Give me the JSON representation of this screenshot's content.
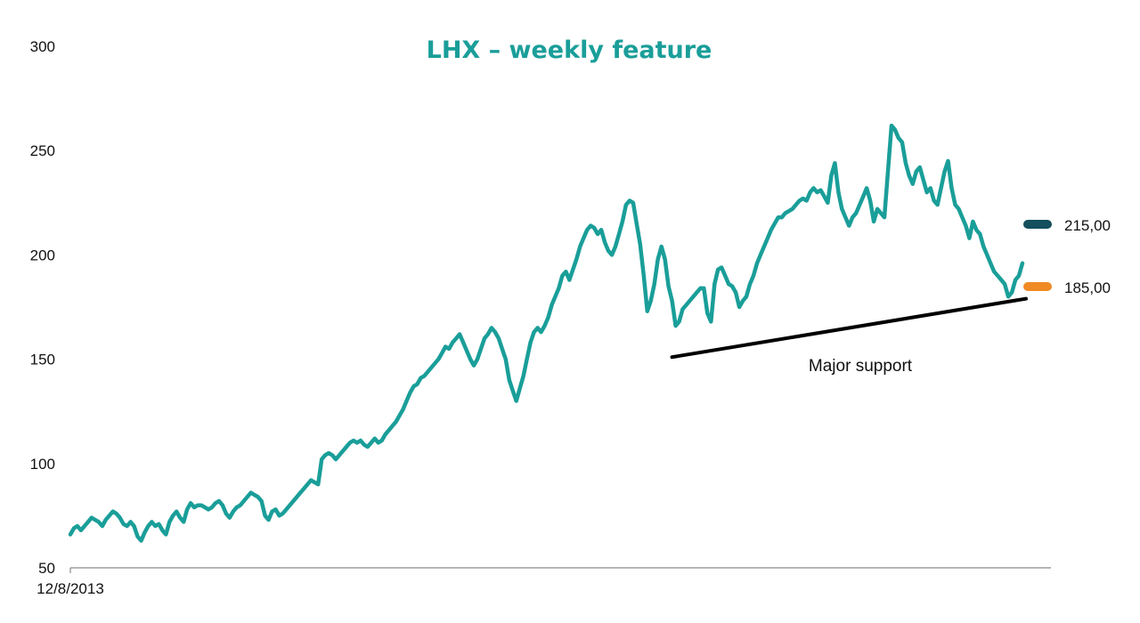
{
  "chart_data": {
    "type": "line",
    "title": "LHX – weekly feature",
    "xlabel": "",
    "ylabel": "",
    "x_tick_labels": [
      "12/8/2013"
    ],
    "y_ticks": [
      50,
      100,
      150,
      200,
      250,
      300
    ],
    "ylim": [
      50,
      300
    ],
    "grid": false,
    "colors": {
      "title": "#1a9e99",
      "series": "#1a9e99",
      "axis": "#8a8a8a",
      "level_1": "#134f5c",
      "level_2": "#f08a24",
      "support": "#000000"
    },
    "series": [
      {
        "values": [
          66,
          69,
          70,
          68,
          70,
          72,
          74,
          73,
          72,
          70,
          73,
          75,
          77,
          76,
          74,
          71,
          70,
          72,
          70,
          65,
          63,
          67,
          70,
          72,
          70,
          71,
          68,
          66,
          72,
          75,
          77,
          74,
          72,
          78,
          81,
          79,
          80,
          80,
          79,
          78,
          79,
          81,
          82,
          80,
          76,
          74,
          77,
          79,
          80,
          82,
          84,
          86,
          85,
          84,
          82,
          75,
          73,
          77,
          78,
          75,
          76,
          78,
          80,
          82,
          84,
          86,
          88,
          90,
          92,
          91,
          90,
          102,
          104,
          105,
          104,
          102,
          104,
          106,
          108,
          110,
          111,
          110,
          111,
          109,
          108,
          110,
          112,
          110,
          111,
          114,
          116,
          118,
          120,
          123,
          126,
          130,
          134,
          137,
          138,
          141,
          142,
          144,
          146,
          148,
          150,
          153,
          156,
          155,
          158,
          160,
          162,
          158,
          154,
          150,
          147,
          150,
          155,
          160,
          162,
          165,
          163,
          160,
          155,
          150,
          140,
          135,
          130,
          136,
          142,
          150,
          158,
          163,
          165,
          163,
          166,
          170,
          176,
          180,
          184,
          190,
          192,
          188,
          193,
          198,
          204,
          208,
          212,
          214,
          213,
          210,
          212,
          206,
          202,
          200,
          204,
          210,
          216,
          224,
          226,
          225,
          215,
          205,
          190,
          173,
          178,
          186,
          198,
          204,
          198,
          185,
          178,
          166,
          168,
          174,
          176,
          178,
          180,
          182,
          184,
          184,
          172,
          168,
          186,
          193,
          194,
          190,
          186,
          185,
          182,
          175,
          178,
          180,
          186,
          190,
          196,
          200,
          204,
          208,
          212,
          215,
          218,
          218,
          220,
          221,
          222,
          224,
          226,
          227,
          226,
          230,
          232,
          230,
          231,
          228,
          225,
          238,
          244,
          230,
          222,
          218,
          214,
          218,
          220,
          224,
          228,
          232,
          226,
          216,
          222,
          220,
          218,
          240,
          262,
          260,
          256,
          254,
          244,
          238,
          234,
          240,
          242,
          236,
          230,
          232,
          226,
          224,
          232,
          240,
          245,
          232,
          224,
          222,
          218,
          214,
          208,
          216,
          212,
          210,
          204,
          200,
          196,
          192,
          190,
          188,
          186,
          180,
          182,
          188,
          190,
          196
        ]
      }
    ],
    "levels": [
      {
        "label": "215,00",
        "value": 215,
        "color": "#134f5c"
      },
      {
        "label": "185,00",
        "value": 185,
        "color": "#f08a24"
      }
    ],
    "annotation": {
      "label": "Major support",
      "start": {
        "index": 170,
        "value": 151
      },
      "end": {
        "index": 270,
        "value": 179
      }
    }
  }
}
